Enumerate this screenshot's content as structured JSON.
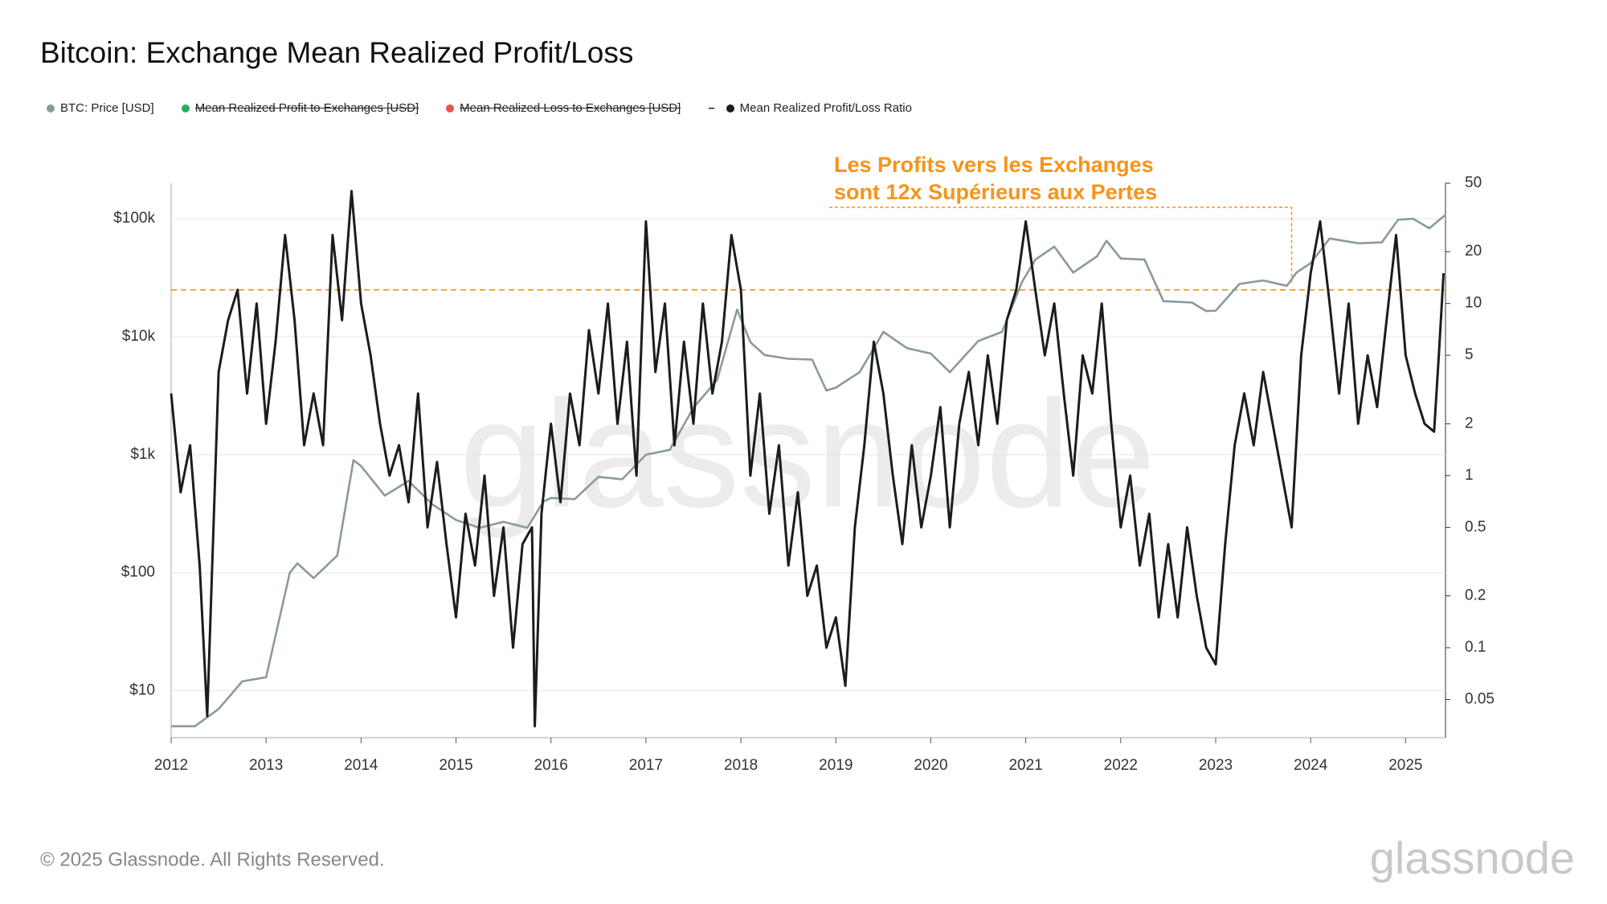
{
  "chart_data": {
    "type": "line",
    "title": "Bitcoin: Exchange Mean Realized Profit/Loss",
    "yscale": "log",
    "y2scale": "log",
    "grid": true,
    "xlim": [
      2012,
      2025.42
    ],
    "xticks": [
      2012,
      2013,
      2014,
      2015,
      2016,
      2017,
      2018,
      2019,
      2020,
      2021,
      2022,
      2023,
      2024,
      2025
    ],
    "ylim": [
      4,
      200000
    ],
    "yticks": [
      {
        "value": 10,
        "label": "$10"
      },
      {
        "value": 100,
        "label": "$100"
      },
      {
        "value": 1000,
        "label": "$1k"
      },
      {
        "value": 10000,
        "label": "$10k"
      },
      {
        "value": 100000,
        "label": "$100k"
      }
    ],
    "y2lim": [
      0.03,
      50
    ],
    "y2ticks": [
      50,
      20,
      10,
      5,
      2,
      1,
      0.5,
      0.2,
      0.1,
      0.05
    ],
    "series": [
      {
        "name": "BTC: Price [USD]",
        "color": "#8a9a9c",
        "x": [
          2012.0,
          2012.25,
          2012.5,
          2012.75,
          2013.0,
          2013.25,
          2013.33,
          2013.5,
          2013.75,
          2013.92,
          2014.0,
          2014.25,
          2014.5,
          2014.75,
          2015.0,
          2015.25,
          2015.5,
          2015.75,
          2015.92,
          2016.0,
          2016.25,
          2016.5,
          2016.75,
          2017.0,
          2017.25,
          2017.5,
          2017.75,
          2017.96,
          2018.1,
          2018.25,
          2018.5,
          2018.75,
          2018.9,
          2019.0,
          2019.25,
          2019.5,
          2019.75,
          2020.0,
          2020.2,
          2020.5,
          2020.75,
          2020.96,
          2021.1,
          2021.3,
          2021.5,
          2021.75,
          2021.85,
          2022.0,
          2022.25,
          2022.45,
          2022.75,
          2022.9,
          2023.0,
          2023.25,
          2023.5,
          2023.75,
          2023.85,
          2024.0,
          2024.2,
          2024.5,
          2024.75,
          2024.92,
          2025.08,
          2025.25,
          2025.42
        ],
        "values": [
          5,
          5,
          7,
          12,
          13,
          100,
          120,
          90,
          140,
          900,
          800,
          450,
          600,
          380,
          280,
          240,
          270,
          240,
          400,
          430,
          420,
          650,
          620,
          1000,
          1100,
          2500,
          4300,
          17000,
          9000,
          7000,
          6500,
          6400,
          3500,
          3700,
          5000,
          11000,
          8000,
          7200,
          5000,
          9200,
          11000,
          29000,
          45000,
          58000,
          35000,
          48000,
          65000,
          46000,
          45000,
          20000,
          19500,
          16500,
          16600,
          28000,
          30000,
          27000,
          35000,
          42000,
          68000,
          62000,
          63000,
          98000,
          100000,
          83000,
          108000
        ]
      },
      {
        "name": "Mean Realized Profit to Exchanges [USD]",
        "color": "#27ae60",
        "hidden": true
      },
      {
        "name": "Mean Realized Loss to Exchanges [USD]",
        "color": "#e8534a",
        "hidden": true
      },
      {
        "name": "Mean Realized Profit/Loss Ratio",
        "color": "#1c1c1c",
        "axis": "y2",
        "x": [
          2012.0,
          2012.1,
          2012.2,
          2012.3,
          2012.38,
          2012.5,
          2012.6,
          2012.7,
          2012.8,
          2012.9,
          2013.0,
          2013.1,
          2013.2,
          2013.3,
          2013.4,
          2013.5,
          2013.6,
          2013.7,
          2013.8,
          2013.9,
          2014.0,
          2014.1,
          2014.2,
          2014.3,
          2014.4,
          2014.5,
          2014.6,
          2014.7,
          2014.8,
          2014.9,
          2015.0,
          2015.1,
          2015.2,
          2015.3,
          2015.4,
          2015.5,
          2015.6,
          2015.7,
          2015.8,
          2015.83,
          2015.9,
          2016.0,
          2016.1,
          2016.2,
          2016.3,
          2016.4,
          2016.5,
          2016.6,
          2016.7,
          2016.8,
          2016.9,
          2017.0,
          2017.1,
          2017.2,
          2017.3,
          2017.4,
          2017.5,
          2017.6,
          2017.7,
          2017.8,
          2017.9,
          2018.0,
          2018.1,
          2018.2,
          2018.3,
          2018.4,
          2018.5,
          2018.6,
          2018.7,
          2018.8,
          2018.9,
          2019.0,
          2019.1,
          2019.2,
          2019.3,
          2019.4,
          2019.5,
          2019.6,
          2019.7,
          2019.8,
          2019.9,
          2020.0,
          2020.1,
          2020.2,
          2020.3,
          2020.4,
          2020.5,
          2020.6,
          2020.7,
          2020.8,
          2020.9,
          2021.0,
          2021.1,
          2021.2,
          2021.3,
          2021.4,
          2021.5,
          2021.6,
          2021.7,
          2021.8,
          2021.9,
          2022.0,
          2022.1,
          2022.2,
          2022.3,
          2022.4,
          2022.5,
          2022.6,
          2022.7,
          2022.8,
          2022.9,
          2023.0,
          2023.1,
          2023.2,
          2023.3,
          2023.4,
          2023.5,
          2023.6,
          2023.7,
          2023.8,
          2023.9,
          2024.0,
          2024.1,
          2024.2,
          2024.3,
          2024.4,
          2024.5,
          2024.6,
          2024.7,
          2024.8,
          2024.9,
          2025.0,
          2025.1,
          2025.2,
          2025.3,
          2025.35,
          2025.4
        ],
        "values": [
          3,
          0.8,
          1.5,
          0.3,
          0.04,
          4,
          8,
          12,
          3,
          10,
          2,
          6,
          25,
          8,
          1.5,
          3,
          1.5,
          25,
          8,
          45,
          10,
          5,
          2,
          1,
          1.5,
          0.7,
          3,
          0.5,
          1.2,
          0.4,
          0.15,
          0.6,
          0.3,
          1,
          0.2,
          0.5,
          0.1,
          0.4,
          0.5,
          0.035,
          0.6,
          2,
          0.7,
          3,
          1.5,
          7,
          3,
          10,
          2,
          6,
          1,
          30,
          4,
          10,
          1.5,
          6,
          2,
          10,
          3,
          6,
          25,
          12,
          1,
          3,
          0.6,
          1.5,
          0.3,
          0.8,
          0.2,
          0.3,
          0.1,
          0.15,
          0.06,
          0.5,
          1.5,
          6,
          3,
          1,
          0.4,
          1.5,
          0.5,
          1,
          2.5,
          0.5,
          2,
          4,
          1.5,
          5,
          2,
          8,
          12,
          30,
          12,
          5,
          10,
          3,
          1,
          5,
          3,
          10,
          2,
          0.5,
          1,
          0.3,
          0.6,
          0.15,
          0.4,
          0.15,
          0.5,
          0.2,
          0.1,
          0.08,
          0.4,
          1.5,
          3,
          1.5,
          4,
          2,
          1,
          0.5,
          5,
          15,
          30,
          10,
          3,
          10,
          2,
          5,
          2.5,
          8,
          25,
          5,
          3,
          2,
          1.8,
          5,
          15
        ]
      }
    ],
    "hline": {
      "value": 12,
      "axis": "y2",
      "color": "#f7931a"
    },
    "annotation": {
      "lines": [
        "Les Profits vers les Exchanges",
        "sont 12x Supérieurs aux Pertes"
      ],
      "x": 2023.8,
      "color": "#f7931a"
    },
    "watermark": "glassnode",
    "footer": {
      "copyright": "© 2025 Glassnode. All Rights Reserved.",
      "logo": "glassnode"
    }
  }
}
